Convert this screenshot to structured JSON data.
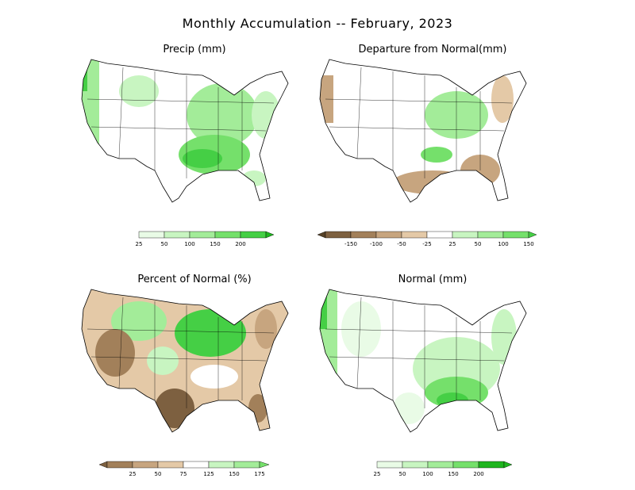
{
  "title": "Monthly Accumulation -- February, 2023",
  "colors": {
    "green1": "#e9fbe6",
    "green2": "#c8f5c1",
    "green3": "#a3ec99",
    "green4": "#75e06b",
    "green5": "#45cf45",
    "green6": "#1fb51f",
    "brown1": "#e4c9a7",
    "brown2": "#c7a57f",
    "brown3": "#a2805a",
    "brown4": "#7d6040",
    "brown5": "#564227"
  },
  "panels": [
    {
      "id": "precip",
      "title": "Precip (mm)",
      "legend": {
        "labels": [
          "25",
          "50",
          "100",
          "150",
          "200"
        ]
      }
    },
    {
      "id": "departure",
      "title": "Departure from Normal(mm)",
      "legend": {
        "labels": [
          "-150",
          "-100",
          "-50",
          "-25",
          "25",
          "50",
          "100",
          "150"
        ]
      }
    },
    {
      "id": "percent",
      "title": "Percent of Normal (%)",
      "legend": {
        "labels": [
          "25",
          "50",
          "75",
          "125",
          "150",
          "175"
        ]
      }
    },
    {
      "id": "normal",
      "title": "Normal (mm)",
      "legend": {
        "labels": [
          "25",
          "50",
          "100",
          "150",
          "200"
        ]
      }
    }
  ]
}
